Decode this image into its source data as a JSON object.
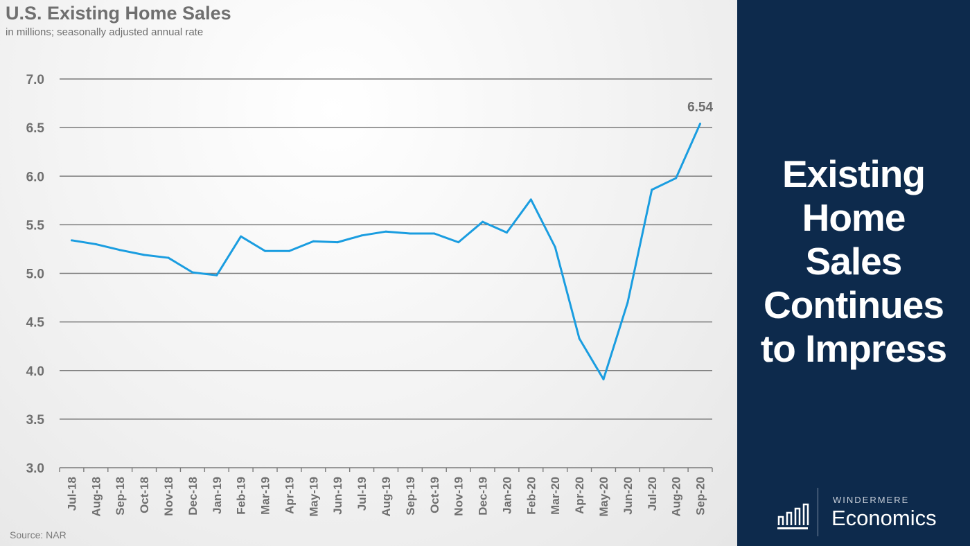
{
  "title": "U.S. Existing Home Sales",
  "subtitle": "in millions; seasonally adjusted annual rate",
  "source": "Source: NAR",
  "headline": [
    "Existing",
    "Home",
    "Sales",
    "Continues",
    "to Impress"
  ],
  "logo": {
    "small": "WINDERMERE",
    "big": "Economics",
    "icon": "bar-chart-icon"
  },
  "colors": {
    "line": "#1a9de0",
    "panel": "#0d2a4c",
    "grid": "#7a7a7a",
    "text": "#6f6f6f"
  },
  "chart_data": {
    "type": "line",
    "title": "U.S. Existing Home Sales",
    "subtitle": "in millions; seasonally adjusted annual rate",
    "categories": [
      "Jul-18",
      "Aug-18",
      "Sep-18",
      "Oct-18",
      "Nov-18",
      "Dec-18",
      "Jan-19",
      "Feb-19",
      "Mar-19",
      "Apr-19",
      "May-19",
      "Jun-19",
      "Jul-19",
      "Aug-19",
      "Sep-19",
      "Oct-19",
      "Nov-19",
      "Dec-19",
      "Jan-20",
      "Feb-20",
      "Mar-20",
      "Apr-20",
      "May-20",
      "Jun-20",
      "Jul-20",
      "Aug-20",
      "Sep-20"
    ],
    "values": [
      5.34,
      5.3,
      5.24,
      5.19,
      5.16,
      5.01,
      4.98,
      5.38,
      5.23,
      5.23,
      5.33,
      5.32,
      5.39,
      5.43,
      5.41,
      5.41,
      5.32,
      5.53,
      5.42,
      5.76,
      5.27,
      4.33,
      3.91,
      4.7,
      5.86,
      5.98,
      6.54
    ],
    "ylim": [
      3.0,
      7.0
    ],
    "yticks": [
      "3.0",
      "3.5",
      "4.0",
      "4.5",
      "5.0",
      "5.5",
      "6.0",
      "6.5",
      "7.0"
    ],
    "grid": true,
    "annotations": [
      {
        "category": "Sep-20",
        "label": "6.54"
      }
    ]
  }
}
